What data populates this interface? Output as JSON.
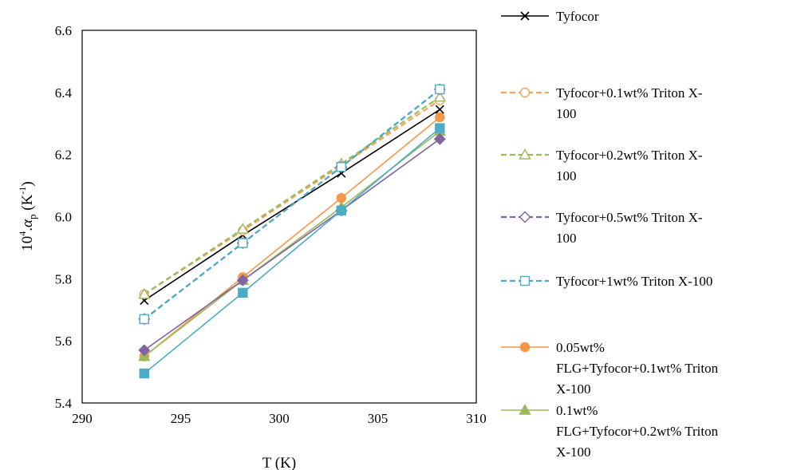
{
  "chart_data": {
    "type": "line",
    "title": "",
    "xlabel": "T (K)",
    "ylabel": {
      "base": "10",
      "sup": "4",
      "mid": ".",
      "alpha": "α",
      "sub": "p",
      "unit_pre": " (K",
      "unit_sup": "-1",
      "unit_post": ")"
    },
    "xlim": [
      290,
      310
    ],
    "ylim": [
      5.4,
      6.6
    ],
    "xticks": [
      "290",
      "295",
      "300",
      "305",
      "310"
    ],
    "yticks": [
      "5.4",
      "5.6",
      "5.8",
      "6.0",
      "6.2",
      "6.4",
      "6.6"
    ],
    "grid": false,
    "legend_position": "right",
    "x": [
      293.15,
      298.15,
      303.15,
      308.15
    ],
    "series": [
      {
        "name_lines": [
          "Tyfocor"
        ],
        "values": [
          5.73,
          5.94,
          6.14,
          6.345
        ],
        "color": "#000000",
        "dash": false,
        "marker": "x"
      },
      {
        "name_lines": [
          "Tyfocor+0.1wt% Triton X-",
          "100"
        ],
        "values": [
          5.75,
          5.955,
          6.165,
          6.375
        ],
        "color": "#F7A35C",
        "dash": true,
        "marker": "circle-open"
      },
      {
        "name_lines": [
          "Tyfocor+0.2wt% Triton X-",
          "100"
        ],
        "values": [
          5.75,
          5.96,
          6.17,
          6.385
        ],
        "color": "#9BBB59",
        "dash": true,
        "marker": "triangle-open"
      },
      {
        "name_lines": [
          "Tyfocor+0.5wt% Triton X-",
          "100"
        ],
        "values": [
          5.67,
          5.915,
          6.16,
          6.41
        ],
        "color": "#8064A2",
        "dash": true,
        "marker": "diamond-open"
      },
      {
        "name_lines": [
          "Tyfocor+1wt% Triton X-100"
        ],
        "values": [
          5.67,
          5.915,
          6.16,
          6.41
        ],
        "color": "#4BACC6",
        "dash": true,
        "marker": "square-open"
      },
      {
        "name_lines": [
          "0.05wt%",
          "FLG+Tyfocor+0.1wt% Triton",
          "X-100"
        ],
        "values": [
          5.55,
          5.805,
          6.06,
          6.32
        ],
        "color": "#F79646",
        "dash": false,
        "marker": "circle-filled"
      },
      {
        "name_lines": [
          "0.1wt%",
          "FLG+Tyfocor+0.2wt% Triton",
          "X-100"
        ],
        "values": [
          5.55,
          5.795,
          6.03,
          6.275
        ],
        "color": "#9BBB59",
        "dash": false,
        "marker": "triangle-filled"
      },
      {
        "name_lines": [],
        "values": [
          5.57,
          5.795,
          6.02,
          6.25
        ],
        "color": "#8064A2",
        "dash": false,
        "marker": "diamond-filled"
      },
      {
        "name_lines": [],
        "values": [
          5.495,
          5.755,
          6.02,
          6.285
        ],
        "color": "#4BACC6",
        "dash": false,
        "marker": "square-filled"
      }
    ]
  }
}
